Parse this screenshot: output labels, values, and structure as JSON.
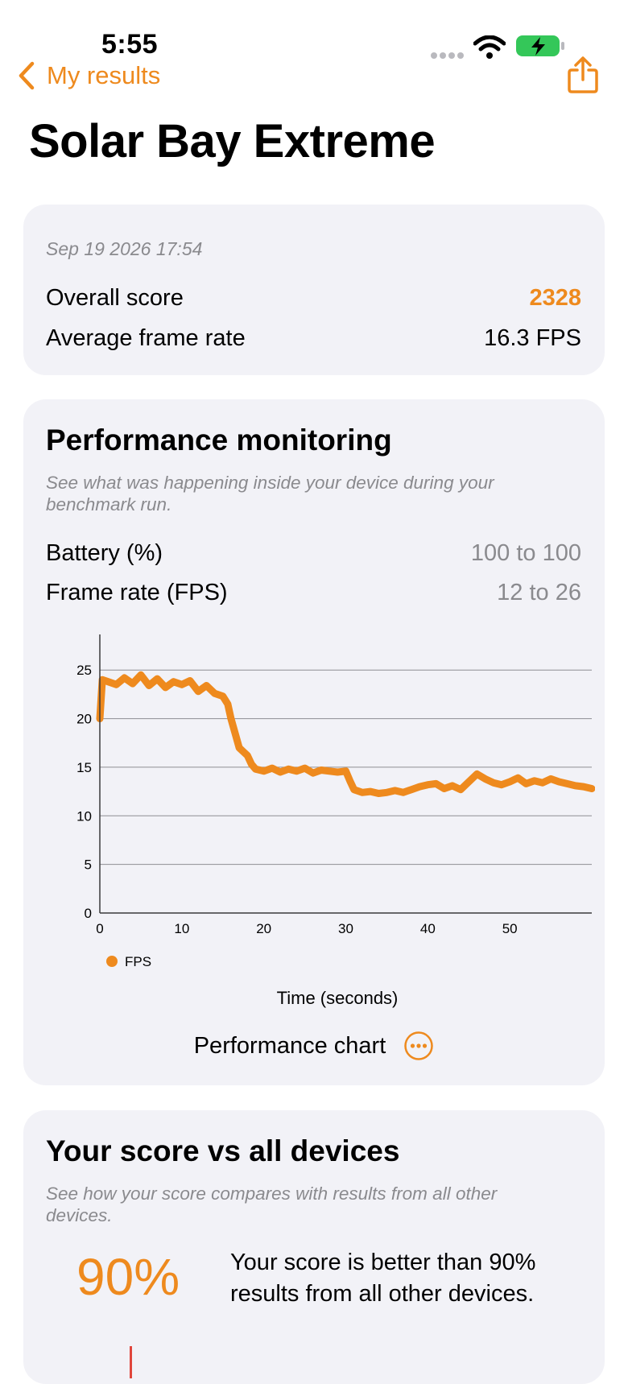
{
  "status_bar": {
    "time": "5:55"
  },
  "nav": {
    "back_label": "My results"
  },
  "page_title": "Solar Bay Extreme",
  "summary": {
    "date": "Sep 19 2026 17:54",
    "overall_score_label": "Overall score",
    "overall_score_value": "2328",
    "avg_frame_rate_label": "Average frame rate",
    "avg_frame_rate_value": "16.3 FPS"
  },
  "performance": {
    "title": "Performance monitoring",
    "description": "See what was happening inside your device during your benchmark run.",
    "battery_label": "Battery (%)",
    "battery_range": "100 to 100",
    "framerate_label": "Frame rate (FPS)",
    "framerate_range": "12 to 26",
    "chart_button_label": "Performance chart"
  },
  "comparison": {
    "title": "Your score vs all devices",
    "description": "See how your score compares with results from all other devices.",
    "percent": "90%",
    "percent_text": "Your score is better than 90% results from all other devices."
  },
  "colors": {
    "accent": "#ee8a1e",
    "card_bg": "#f2f2f7",
    "muted": "#8a8a8e",
    "marker": "#e0463c",
    "battery_green": "#34c759"
  },
  "chart_data": {
    "type": "line",
    "xlabel": "Time (seconds)",
    "ylabel": "",
    "xlim": [
      0,
      60
    ],
    "ylim": [
      0,
      28
    ],
    "x_ticks": [
      0,
      10,
      20,
      30,
      40,
      50
    ],
    "y_ticks": [
      0,
      5,
      10,
      15,
      20,
      25
    ],
    "grid": true,
    "legend": "bottom-left",
    "series": [
      {
        "name": "FPS",
        "color": "#ee8a1e",
        "x": [
          0,
          0.3,
          1,
          2,
          3,
          4,
          5,
          6,
          7,
          8,
          9,
          10,
          11,
          12,
          13,
          14,
          15,
          15.6,
          16,
          16.5,
          17,
          17.5,
          18,
          18.5,
          19,
          20,
          21,
          22,
          23,
          24,
          25,
          26,
          27,
          28,
          29,
          30,
          30.5,
          31,
          32,
          33,
          34,
          35,
          36,
          37,
          38,
          39,
          40,
          41,
          42,
          43,
          44,
          45,
          46,
          47,
          48,
          49,
          50,
          51,
          52,
          53,
          54,
          55,
          56,
          57,
          58,
          59,
          60
        ],
        "y": [
          20,
          24,
          23.8,
          23.5,
          24.2,
          23.6,
          24.5,
          23.4,
          24.1,
          23.2,
          23.8,
          23.5,
          23.9,
          22.8,
          23.4,
          22.6,
          22.3,
          21.5,
          20,
          18.5,
          17,
          16.6,
          16.2,
          15.3,
          14.8,
          14.6,
          14.9,
          14.5,
          14.8,
          14.6,
          14.9,
          14.4,
          14.7,
          14.6,
          14.5,
          14.6,
          13.6,
          12.7,
          12.4,
          12.5,
          12.3,
          12.4,
          12.6,
          12.4,
          12.7,
          13.0,
          13.2,
          13.3,
          12.8,
          13.1,
          12.7,
          13.5,
          14.3,
          13.8,
          13.4,
          13.2,
          13.5,
          13.9,
          13.3,
          13.6,
          13.4,
          13.8,
          13.5,
          13.3,
          13.1,
          13.0,
          12.8
        ]
      }
    ]
  }
}
